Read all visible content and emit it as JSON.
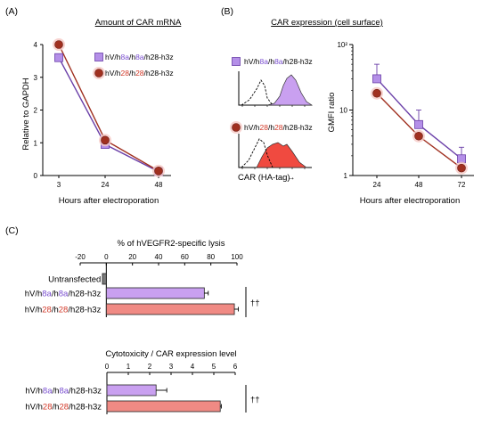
{
  "panels": {
    "a": "(A)",
    "b": "(B)",
    "c": "(C)"
  },
  "constructs": {
    "h8a": {
      "prefix": "hV/h",
      "mid1": "8a",
      "sep": "/h",
      "mid2": "8a",
      "suffix": "/h28-h3z"
    },
    "h28": {
      "prefix": "hV/h",
      "mid1": "28",
      "sep": "/h",
      "mid2": "28",
      "suffix": "/h28-h3z"
    }
  },
  "colors": {
    "purple": "#b48fe8",
    "purple_dark": "#6a3fa8",
    "purple_label": "#7a4fd0",
    "red": "#a03020",
    "red_label": "#d23a2a",
    "salmon": "#f08a84",
    "hist_purple": "#c9a0f0",
    "hist_red": "#f04a40",
    "gray_bar": "#7a7a7a"
  },
  "hist": {
    "xlabel": "CAR (HA-tag)",
    "arrow": "→"
  },
  "chart_data": [
    {
      "id": "A",
      "type": "line",
      "title": "Amount of CAR mRNA",
      "xlabel": "Hours after electroporation",
      "ylabel": "Relative to GAPDH",
      "categories": [
        "3",
        "24",
        "48"
      ],
      "ylim": [
        0,
        4
      ],
      "yticks": [
        "0",
        "1",
        "2",
        "3",
        "4"
      ],
      "series": [
        {
          "name": "hV/h8a/h8a/h28-h3z",
          "marker": "square",
          "values": [
            3.6,
            0.95,
            0.12
          ]
        },
        {
          "name": "hV/h28/h28/h28-h3z",
          "marker": "circle",
          "values": [
            4.0,
            1.08,
            0.14
          ]
        }
      ]
    },
    {
      "id": "B",
      "type": "line",
      "title": "CAR expression (cell surface)",
      "xlabel": "Hours after electroporation",
      "ylabel": "GMFI ratio",
      "categories": [
        "24",
        "48",
        "72"
      ],
      "yscale": "log",
      "ylim": [
        1,
        100
      ],
      "yticks": [
        "1",
        "10",
        "10²"
      ],
      "series": [
        {
          "name": "hV/h8a/h8a/h28-h3z",
          "marker": "square",
          "values": [
            30,
            6,
            1.8
          ],
          "error_upper": [
            50,
            10,
            2.7
          ]
        },
        {
          "name": "hV/h28/h28/h28-h3z",
          "marker": "circle",
          "values": [
            18,
            4,
            1.3
          ]
        }
      ]
    },
    {
      "id": "C1",
      "type": "bar",
      "orientation": "horizontal",
      "title": "% of hVEGFR2-specific lysis",
      "xlim": [
        -20,
        100
      ],
      "xticks": [
        "-20",
        "0",
        "20",
        "40",
        "60",
        "80",
        "100"
      ],
      "categories": [
        "Untransfected",
        "hV/h8a/h8a/h28-h3z",
        "hV/h28/h28/h28-h3z"
      ],
      "values": [
        -3,
        75,
        98
      ],
      "errors": [
        0,
        3,
        3
      ],
      "significance": "††"
    },
    {
      "id": "C2",
      "type": "bar",
      "orientation": "horizontal",
      "title": "Cytotoxicity / CAR expression level",
      "xlim": [
        0,
        6
      ],
      "xticks": [
        "0",
        "1",
        "2",
        "3",
        "4",
        "5",
        "6"
      ],
      "categories": [
        "hV/h8a/h8a/h28-h3z",
        "hV/h28/h28/h28-h3z"
      ],
      "values": [
        2.3,
        5.3
      ],
      "errors": [
        0.5,
        0.05
      ],
      "significance": "††"
    }
  ]
}
